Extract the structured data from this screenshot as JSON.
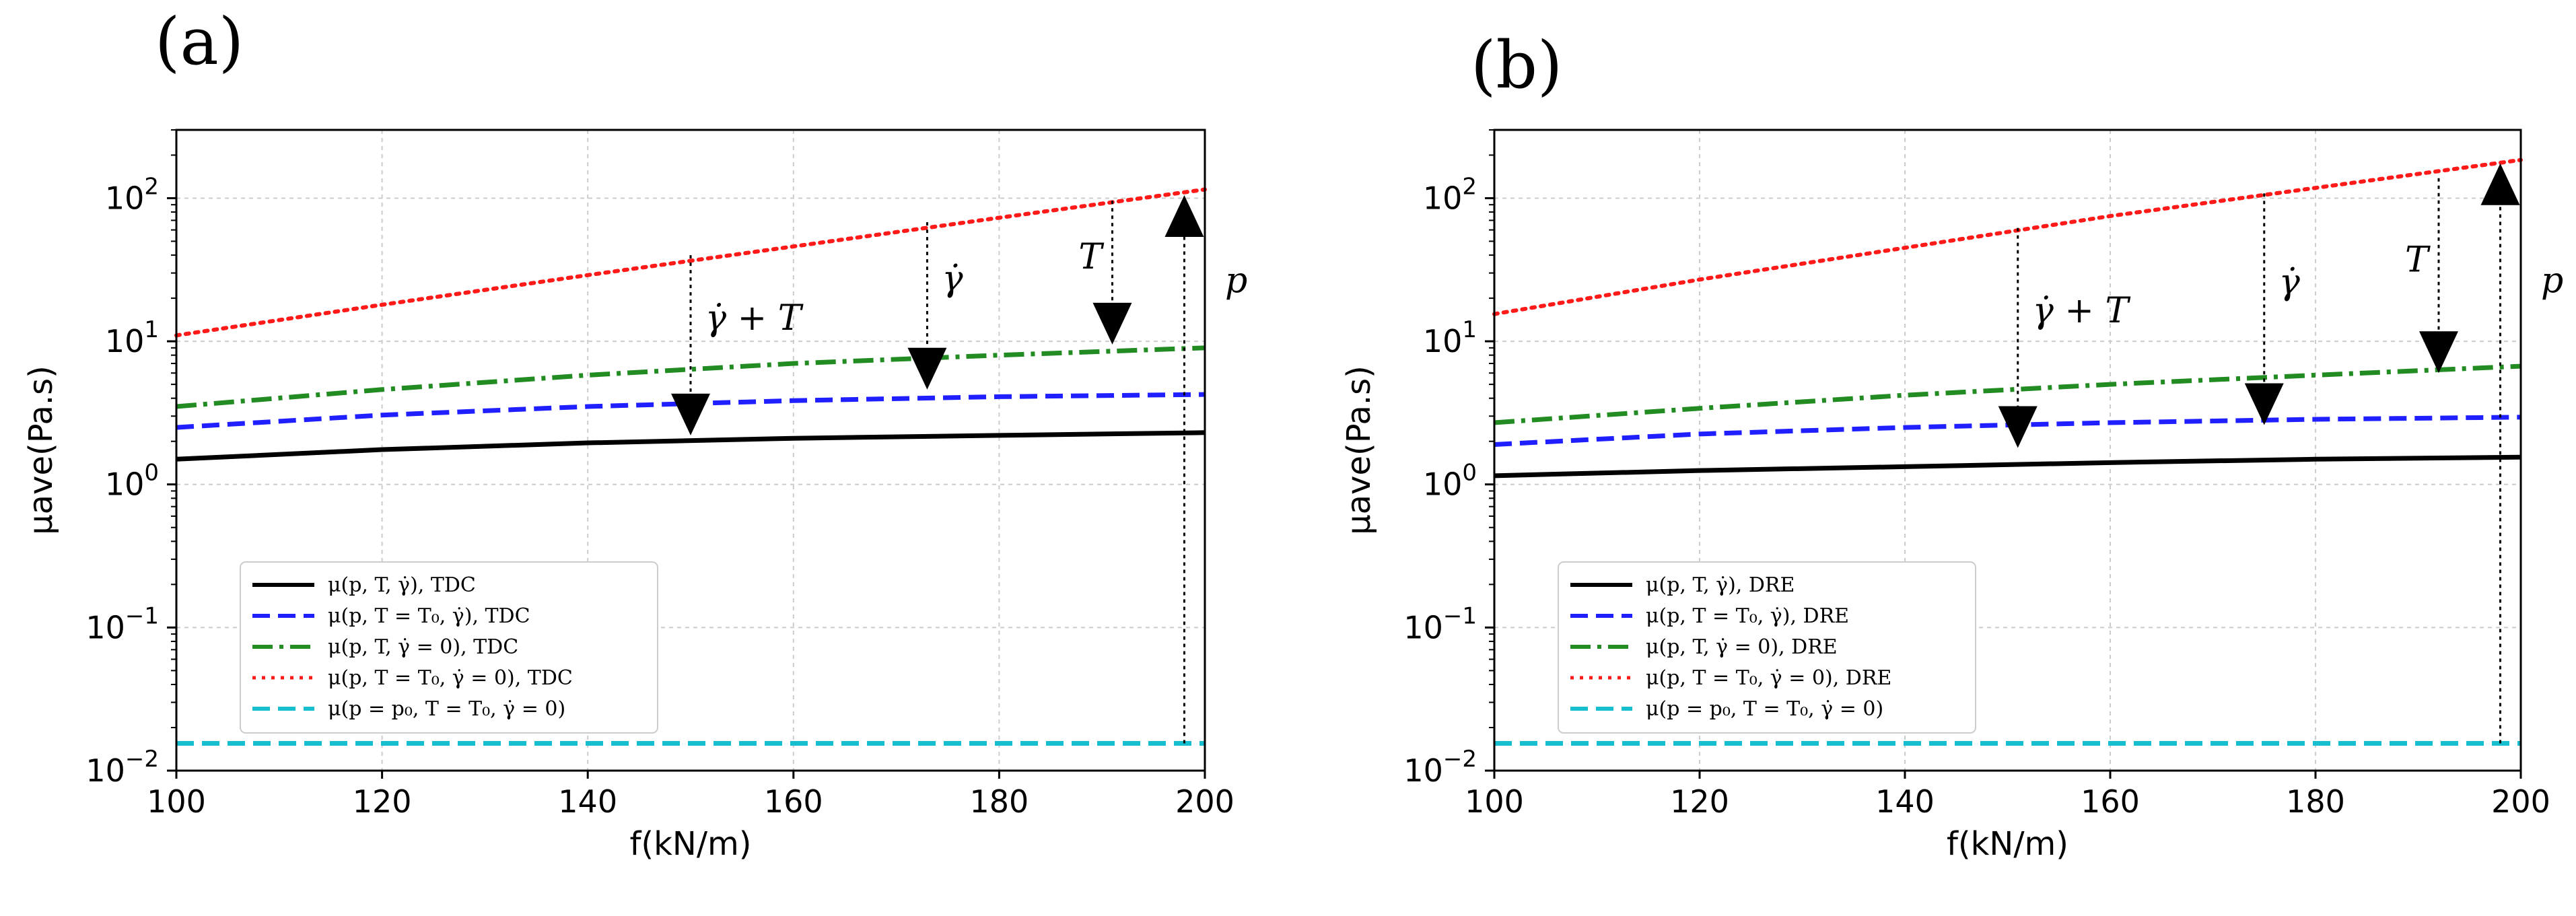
{
  "chart_data": [
    {
      "panel": "(a)",
      "type": "line",
      "yscale": "log",
      "xlabel": "f(kN/m)",
      "ylabel": "μave(Pa.s)",
      "xlim": [
        100,
        200
      ],
      "ylim": [
        0.01,
        300
      ],
      "xticks": [
        "100",
        "120",
        "140",
        "160",
        "180",
        "200"
      ],
      "yticks": [
        {
          "value": 0.01,
          "base": "10",
          "exp": "−2"
        },
        {
          "value": 0.1,
          "base": "10",
          "exp": "−1"
        },
        {
          "value": 1,
          "base": "10",
          "exp": "0"
        },
        {
          "value": 10,
          "base": "10",
          "exp": "1"
        },
        {
          "value": 100,
          "base": "10",
          "exp": "2"
        }
      ],
      "grid": true,
      "legend_position": "lower-left",
      "series": [
        {
          "name": "μ(p, T, γ̇), TDC",
          "color": "#000000",
          "style": "solid",
          "x": [
            100,
            120,
            140,
            160,
            180,
            200
          ],
          "y": [
            1.5,
            1.75,
            1.95,
            2.1,
            2.2,
            2.3
          ]
        },
        {
          "name": "μ(p, T = T₀, γ̇), TDC",
          "color": "#1f1fff",
          "style": "dashed",
          "x": [
            100,
            120,
            140,
            160,
            180,
            200
          ],
          "y": [
            2.5,
            3.05,
            3.5,
            3.85,
            4.1,
            4.25
          ]
        },
        {
          "name": "μ(p, T, γ̇ = 0), TDC",
          "color": "#228b22",
          "style": "dashdot",
          "x": [
            100,
            120,
            140,
            160,
            180,
            200
          ],
          "y": [
            3.5,
            4.6,
            5.8,
            7.0,
            8.0,
            9.0
          ]
        },
        {
          "name": "μ(p, T = T₀, γ̇ = 0), TDC",
          "color": "#ff1a1a",
          "style": "dotted",
          "x": [
            100,
            120,
            140,
            160,
            180,
            200
          ],
          "y": [
            11,
            18,
            29,
            46,
            73,
            115
          ]
        },
        {
          "name": "μ(p = p₀, T = T₀, γ̇ = 0)",
          "color": "#17becf",
          "style": "dashed",
          "x": [
            100,
            200
          ],
          "y": [
            0.0155,
            0.0155
          ]
        }
      ],
      "annotations": [
        {
          "label": "γ̇ + T",
          "x": 150,
          "from": 40,
          "to": 2.2,
          "dir": "down"
        },
        {
          "label": "γ̇",
          "x": 173,
          "from": 68,
          "to": 4.6,
          "dir": "down"
        },
        {
          "label": "T",
          "x": 191,
          "from": 96,
          "to": 9.5,
          "dir": "down"
        },
        {
          "label": "p",
          "x": 198,
          "from": 0.0155,
          "to": 105,
          "dir": "up"
        }
      ]
    },
    {
      "panel": "(b)",
      "type": "line",
      "yscale": "log",
      "xlabel": "f(kN/m)",
      "ylabel": "μave(Pa.s)",
      "xlim": [
        100,
        200
      ],
      "ylim": [
        0.01,
        300
      ],
      "xticks": [
        "100",
        "120",
        "140",
        "160",
        "180",
        "200"
      ],
      "yticks": [
        {
          "value": 0.01,
          "base": "10",
          "exp": "−2"
        },
        {
          "value": 0.1,
          "base": "10",
          "exp": "−1"
        },
        {
          "value": 1,
          "base": "10",
          "exp": "0"
        },
        {
          "value": 10,
          "base": "10",
          "exp": "1"
        },
        {
          "value": 100,
          "base": "10",
          "exp": "2"
        }
      ],
      "grid": true,
      "legend_position": "lower-left",
      "series": [
        {
          "name": "μ(p, T, γ̇), DRE",
          "color": "#000000",
          "style": "solid",
          "x": [
            100,
            120,
            140,
            160,
            180,
            200
          ],
          "y": [
            1.15,
            1.25,
            1.33,
            1.42,
            1.5,
            1.55
          ]
        },
        {
          "name": "μ(p, T = T₀, γ̇), DRE",
          "color": "#1f1fff",
          "style": "dashed",
          "x": [
            100,
            120,
            140,
            160,
            180,
            200
          ],
          "y": [
            1.9,
            2.25,
            2.5,
            2.7,
            2.85,
            2.95
          ]
        },
        {
          "name": "μ(p, T, γ̇ = 0), DRE",
          "color": "#228b22",
          "style": "dashdot",
          "x": [
            100,
            120,
            140,
            160,
            180,
            200
          ],
          "y": [
            2.7,
            3.4,
            4.2,
            5.0,
            5.8,
            6.7
          ]
        },
        {
          "name": "μ(p, T = T₀, γ̇ = 0), DRE",
          "color": "#ff1a1a",
          "style": "dotted",
          "x": [
            100,
            120,
            140,
            160,
            180,
            200
          ],
          "y": [
            15.5,
            27,
            45,
            75,
            118,
            185
          ]
        },
        {
          "name": "μ(p = p₀, T = T₀, γ̇ = 0)",
          "color": "#17becf",
          "style": "dashed",
          "x": [
            100,
            200
          ],
          "y": [
            0.0155,
            0.0155
          ]
        }
      ],
      "annotations": [
        {
          "label": "γ̇ + T",
          "x": 151,
          "from": 62,
          "to": 1.8,
          "dir": "down"
        },
        {
          "label": "γ̇",
          "x": 175,
          "from": 108,
          "to": 2.6,
          "dir": "down"
        },
        {
          "label": "T",
          "x": 192,
          "from": 138,
          "to": 6.0,
          "dir": "down"
        },
        {
          "label": "p",
          "x": 198,
          "from": 0.0155,
          "to": 175,
          "dir": "up"
        }
      ]
    }
  ]
}
